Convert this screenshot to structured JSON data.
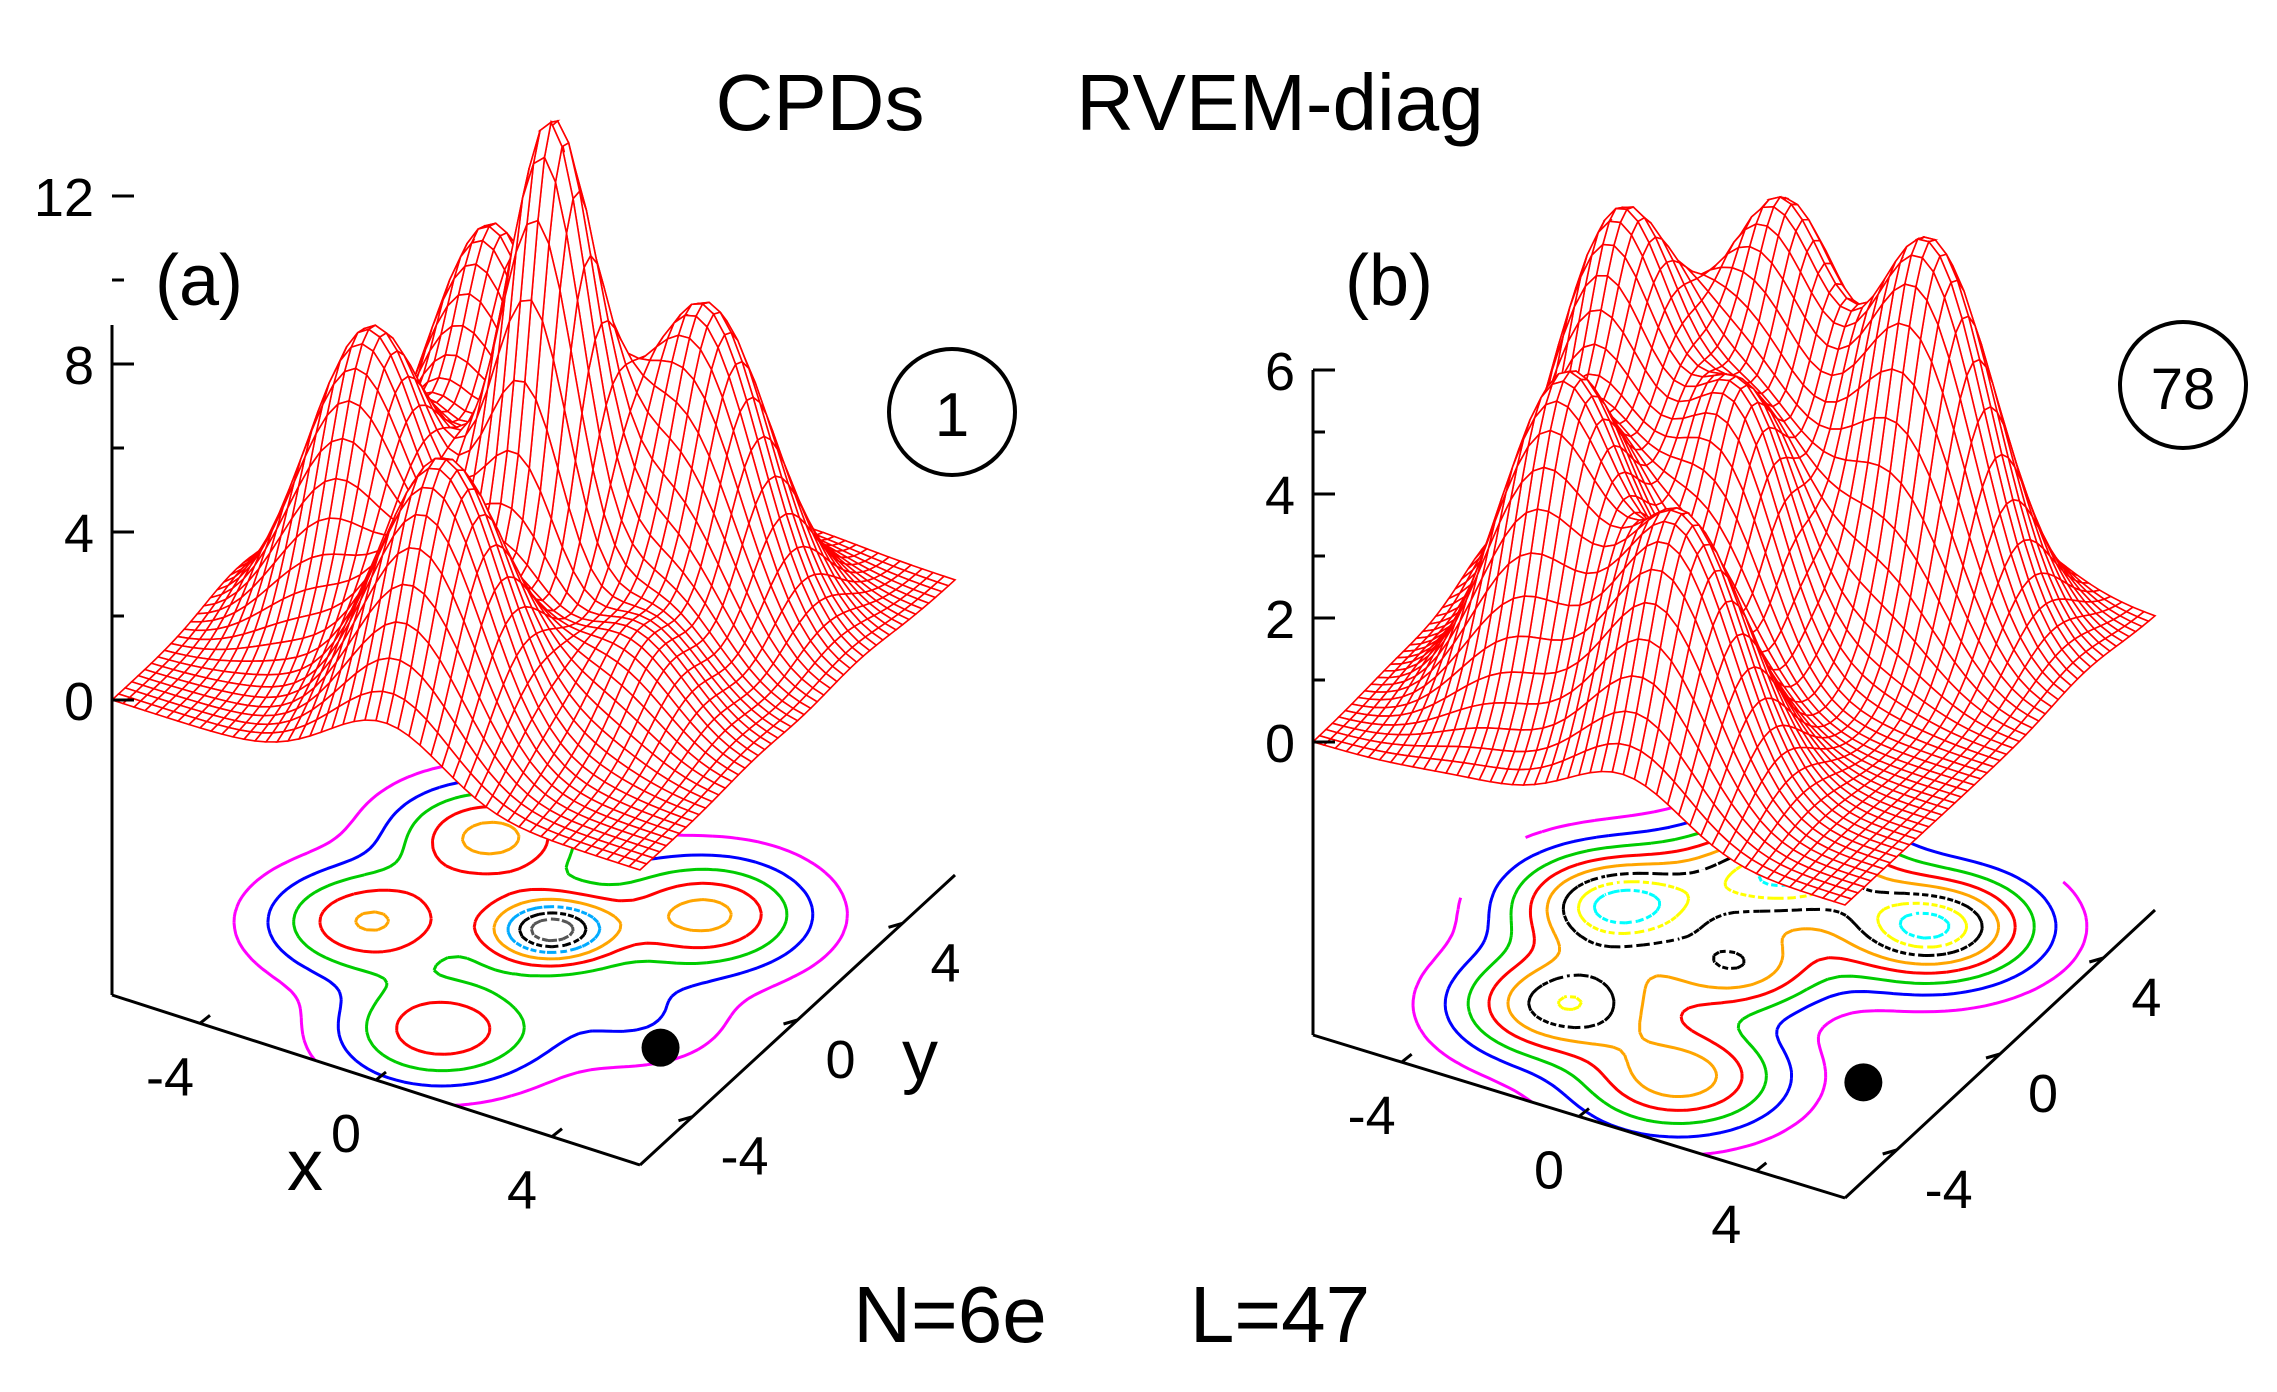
{
  "title": {
    "left": "CPDs",
    "right": "RVEM-diag"
  },
  "footer": {
    "left": "N=6e",
    "right": "L=47"
  },
  "chart_data": [
    {
      "type": "surface",
      "panel_label": "(a)",
      "state_label": "1",
      "zlabel": "",
      "xlabel": "x",
      "ylabel": "y",
      "zlim": [
        0,
        12
      ],
      "z_ticks": [
        "0",
        "4",
        "8",
        "12"
      ],
      "x_ticks": [
        "-4",
        "0",
        "4"
      ],
      "y_ticks": [
        "-4",
        "0",
        "4"
      ],
      "xlim": [
        -6,
        6
      ],
      "ylim": [
        -6,
        6
      ],
      "fixed_electron": {
        "x": 4.2,
        "y": -2.2
      },
      "peaks": [
        {
          "x": 0.2,
          "y": 0.3,
          "height": 11.5,
          "width": 0.9
        },
        {
          "x": -2.5,
          "y": 2.6,
          "height": 7.5,
          "width": 1.25
        },
        {
          "x": 2.5,
          "y": 2.3,
          "height": 7.5,
          "width": 1.3
        },
        {
          "x": -3.0,
          "y": -1.2,
          "height": 7.0,
          "width": 1.25
        },
        {
          "x": 0.2,
          "y": -3.8,
          "height": 6.5,
          "width": 1.3
        },
        {
          "x": 3.2,
          "y": -1.5,
          "height": 2.0,
          "width": 1.2
        }
      ],
      "surface_color": "#ff0000",
      "contour_colors": [
        "#ff00ff",
        "#0000ff",
        "#00cc00",
        "#ff0000",
        "#ffa500",
        "#00aaff",
        "#000000",
        "#555555"
      ]
    },
    {
      "type": "surface",
      "panel_label": "(b)",
      "state_label": "78",
      "zlabel": "",
      "xlabel": "",
      "ylabel": "",
      "zlim": [
        0,
        6
      ],
      "z_ticks": [
        "0",
        "2",
        "4",
        "6"
      ],
      "x_ticks": [
        "-4",
        "0",
        "4"
      ],
      "y_ticks": [
        "-4",
        "0",
        "4"
      ],
      "xlim": [
        -6,
        6
      ],
      "ylim": [
        -6,
        6
      ],
      "fixed_electron": {
        "x": 4.2,
        "y": -2.2
      },
      "peaks": [
        {
          "x": -3.2,
          "y": 1.0,
          "height": 6.2,
          "width": 1.3
        },
        {
          "x": -1.0,
          "y": 3.6,
          "height": 5.8,
          "width": 1.3
        },
        {
          "x": 2.5,
          "y": 3.3,
          "height": 6.2,
          "width": 1.3
        },
        {
          "x": -2.3,
          "y": -2.6,
          "height": 5.2,
          "width": 1.3
        },
        {
          "x": 1.0,
          "y": -3.8,
          "height": 4.2,
          "width": 1.3
        },
        {
          "x": 0.0,
          "y": 0.2,
          "height": 4.0,
          "width": 1.1
        }
      ],
      "surface_color": "#ff0000",
      "contour_colors": [
        "#ff00ff",
        "#0000ff",
        "#00cc00",
        "#ff0000",
        "#ffa500",
        "#000000",
        "#ffff00",
        "#00ffff"
      ]
    }
  ]
}
